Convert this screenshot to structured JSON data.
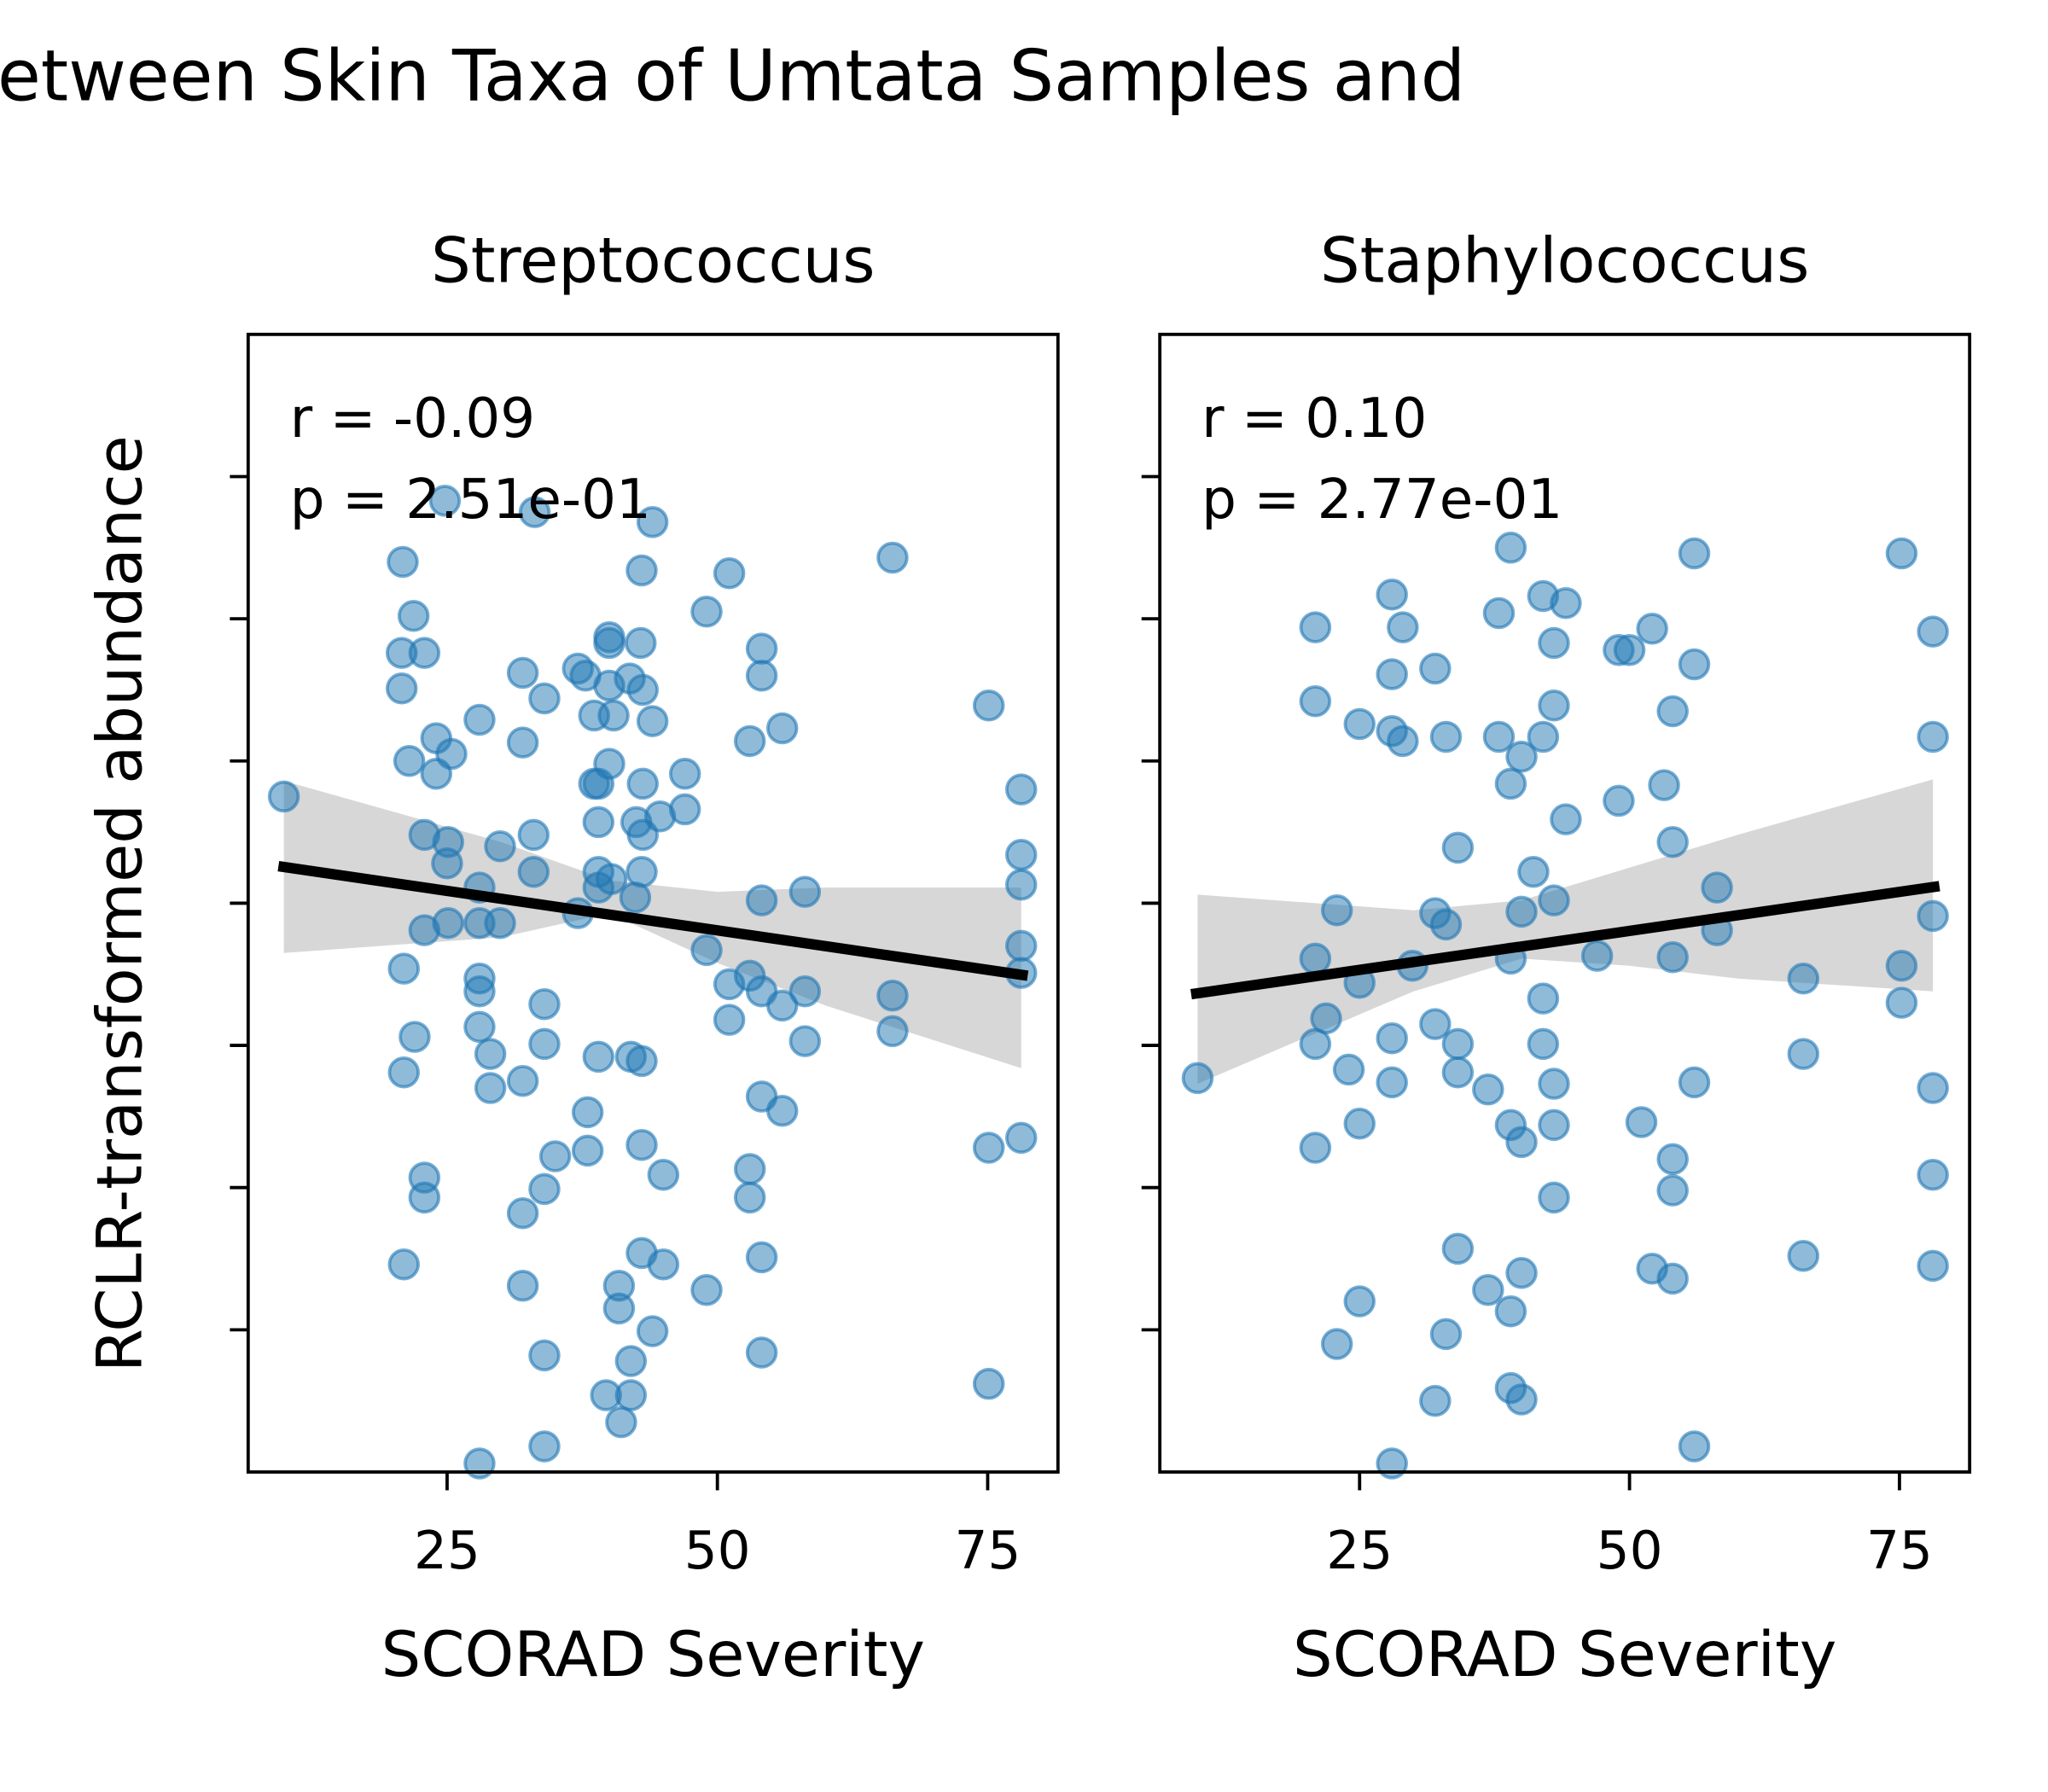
{
  "title": "etween Skin Taxa of Umtata Samples and",
  "ylabel": "RCLR-transformed abundance",
  "chart_data": [
    {
      "type": "scatter",
      "title": "Streptococcus",
      "xlabel": "SCORAD Severity",
      "color": "#1f77b4",
      "annotations": [
        "r = -0.09",
        "p = 2.51e-01"
      ],
      "xlim": [
        6.6,
        81.5
      ],
      "ylim": [
        -4,
        4
      ],
      "xticks": [
        25,
        50,
        75
      ],
      "yticks": [
        -3,
        -2,
        -1,
        0,
        1,
        2,
        3
      ],
      "show_ytick_labels": false,
      "x": [
        9.9,
        20.9,
        21.9,
        20.8,
        22.9,
        20.8,
        24.8,
        21.5,
        24.0,
        25.4,
        24.0,
        22.9,
        25.1,
        25.0,
        22.9,
        25.1,
        21.0,
        22.0,
        21.0,
        22.9,
        22.9,
        21.0,
        28.0,
        28.0,
        28.0,
        28.0,
        28.0,
        28.0,
        29.0,
        29.0,
        28.0,
        29.9,
        29.9,
        32.0,
        32.0,
        32.0,
        32.0,
        32.0,
        33.0,
        33.0,
        33.1,
        34.0,
        34.0,
        34.0,
        34.0,
        34.0,
        34.0,
        35.0,
        37.1,
        37.1,
        38.0,
        38.0,
        38.6,
        39.0,
        39.0,
        39.0,
        39.0,
        40.0,
        40.0,
        40.0,
        40.9,
        40.9,
        41.1,
        39.7,
        42.0,
        42.0,
        42.0,
        43.0,
        43.0,
        43.0,
        43.0,
        44.0,
        43.1,
        42.5,
        43.0,
        42.4,
        44.0,
        45.0,
        45.0,
        44.0,
        47.0,
        47.0,
        49.0,
        49.0,
        49.0,
        51.1,
        51.1,
        51.1,
        53.0,
        53.0,
        53.0,
        53.0,
        54.1,
        54.1,
        54.1,
        54.1,
        54.1,
        54.1,
        54.1,
        56.0,
        56.0,
        56.0,
        58.1,
        58.1,
        58.1,
        66.2,
        66.2,
        66.2,
        75.1,
        75.1,
        75.1,
        78.1,
        78.1,
        78.1,
        78.1,
        78.1,
        78.1,
        42.9,
        40.0,
        37.8,
        41.9,
        43.1,
        38.6,
        40.4,
        40.2,
        39.0,
        44.7,
        43.1
      ],
      "y": [
        0.75,
        2.4,
        2.02,
        1.76,
        1.76,
        1.51,
        2.83,
        1.0,
        1.16,
        1.05,
        0.91,
        0.48,
        0.43,
        0.28,
        -0.19,
        -0.14,
        -0.46,
        -0.94,
        -1.19,
        -1.93,
        -2.07,
        -2.54,
        1.29,
        0.11,
        -0.14,
        -0.53,
        -0.62,
        -0.87,
        -1.06,
        -1.3,
        -3.94,
        0.4,
        -0.14,
        1.13,
        1.62,
        -1.25,
        -2.18,
        -2.69,
        0.48,
        0.22,
        2.75,
        1.44,
        -0.71,
        -0.99,
        -2.01,
        -3.18,
        -3.82,
        -1.78,
        -0.07,
        1.65,
        -1.47,
        -1.74,
        1.32,
        0.84,
        -1.08,
        0.57,
        0.11,
        1.87,
        0.98,
        1.53,
        -2.69,
        -2.85,
        -3.65,
        -3.46,
        -3.46,
        -3.22,
        -1.08,
        -1.11,
        -1.7,
        -2.46,
        2.34,
        2.68,
        0.84,
        0.57,
        0.22,
        0.04,
        1.28,
        -2.54,
        -1.91,
        -3.01,
        0.66,
        0.91,
        2.05,
        -0.33,
        -2.72,
        2.32,
        -0.57,
        -0.82,
        1.14,
        -0.51,
        -1.87,
        -2.07,
        1.79,
        1.6,
        0.02,
        -0.62,
        -1.36,
        -2.49,
        -3.16,
        1.23,
        -0.72,
        -1.46,
        0.08,
        -0.97,
        -0.62,
        2.43,
        -0.65,
        -0.9,
        1.39,
        -1.72,
        -3.38,
        0.8,
        0.34,
        0.13,
        -0.3,
        -0.49,
        -1.65,
        1.83,
        1.83,
        1.6,
        1.58,
        1.5,
        0.84,
        1.32,
        0.17,
        0.22,
        0.61,
        0.48
      ],
      "fit": {
        "color": "#000000",
        "x": [
          9.4,
          78.7
        ],
        "y": [
          0.26,
          -0.51
        ]
      },
      "ci": {
        "color": "#d3d3d3",
        "x": [
          9.9,
          30,
          40,
          50,
          60,
          78.1
        ],
        "upper": [
          0.86,
          0.43,
          0.16,
          0.08,
          0.11,
          0.11
        ],
        "lower": [
          -0.35,
          -0.24,
          -0.07,
          -0.42,
          -0.72,
          -1.16
        ]
      }
    },
    {
      "type": "scatter",
      "title": "Staphylococcus",
      "xlabel": "SCORAD Severity",
      "color": "#1f77b4",
      "annotations": [
        "r = 0.10",
        "p = 2.77e-01"
      ],
      "xlim": [
        6.5,
        81.5
      ],
      "ylim": [
        -4,
        4
      ],
      "xticks": [
        25,
        50,
        75
      ],
      "yticks": [
        -3,
        -2,
        -1,
        0,
        1,
        2,
        3
      ],
      "show_ytick_labels": false,
      "x": [
        10.0,
        20.9,
        20.9,
        20.9,
        20.9,
        20.9,
        22.9,
        21.9,
        24.0,
        25.0,
        25.0,
        25.0,
        25.0,
        22.9,
        28.0,
        28.0,
        28.0,
        29.0,
        29.0,
        28.0,
        28.0,
        28.0,
        29.9,
        32.0,
        32.0,
        32.0,
        32.0,
        33.0,
        33.0,
        33.0,
        34.1,
        34.1,
        34.1,
        34.1,
        36.9,
        36.9,
        37.9,
        37.9,
        39.0,
        39.0,
        39.0,
        39.0,
        39.0,
        40.0,
        40.0,
        40.0,
        40.0,
        39.0,
        40.0,
        41.1,
        42.0,
        42.0,
        42.0,
        42.0,
        43.0,
        43.0,
        43.0,
        43.0,
        43.0,
        43.0,
        44.1,
        44.1,
        47.0,
        49.0,
        49.0,
        51.1,
        52.1,
        52.1,
        53.2,
        54.0,
        54.0,
        54.0,
        54.0,
        54.0,
        54.0,
        56.0,
        56.0,
        56.0,
        56.0,
        58.1,
        58.1,
        66.1,
        66.1,
        66.1,
        75.2,
        75.2,
        75.2,
        78.1,
        78.1,
        78.1,
        78.1,
        78.1,
        78.1,
        50.0
      ],
      "y": [
        -1.23,
        1.94,
        1.42,
        -0.39,
        -0.99,
        -1.72,
        -0.05,
        -0.81,
        -1.17,
        1.26,
        -0.56,
        -1.55,
        -2.8,
        -3.1,
        2.17,
        1.61,
        1.21,
        1.94,
        1.14,
        -0.95,
        -1.26,
        -3.94,
        -0.44,
        1.65,
        -0.07,
        -0.85,
        -3.5,
        1.17,
        -0.15,
        -3.03,
        0.39,
        -0.99,
        -1.19,
        -2.43,
        -1.31,
        -2.72,
        2.04,
        1.17,
        2.5,
        0.84,
        -0.39,
        -1.56,
        -2.87,
        1.03,
        -0.06,
        -1.68,
        -2.6,
        -3.41,
        -3.49,
        0.22,
        2.16,
        1.17,
        -0.67,
        -0.99,
        1.83,
        1.39,
        0.02,
        -1.27,
        -1.56,
        -2.07,
        2.11,
        0.59,
        -0.37,
        1.78,
        0.72,
        -1.54,
        1.93,
        -2.57,
        0.83,
        1.35,
        0.43,
        -0.38,
        -1.8,
        -2.02,
        -2.64,
        2.46,
        1.68,
        -1.26,
        -3.82,
        0.11,
        -0.19,
        -0.53,
        -1.06,
        -2.48,
        2.46,
        -0.44,
        -0.7,
        1.91,
        1.17,
        -0.09,
        -1.3,
        -1.91,
        -2.55,
        1.78
      ],
      "fit": {
        "color": "#000000",
        "x": [
          9.4,
          78.7
        ],
        "y": [
          -0.64,
          0.12
        ]
      },
      "ci": {
        "color": "#d3d3d3",
        "x": [
          10.0,
          30,
          40,
          50,
          60,
          78.1
        ],
        "upper": [
          0.06,
          -0.05,
          0.02,
          0.25,
          0.48,
          0.87
        ],
        "lower": [
          -1.27,
          -0.62,
          -0.39,
          -0.44,
          -0.53,
          -0.62
        ]
      }
    }
  ]
}
